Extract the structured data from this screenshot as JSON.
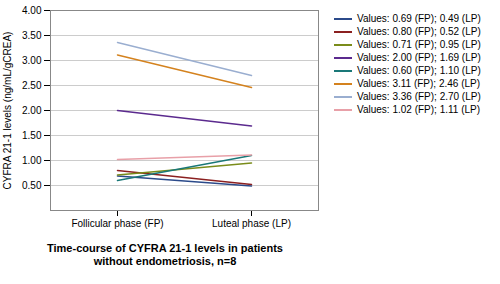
{
  "chart_data": {
    "type": "line",
    "title": "Time-course of CYFRA 21-1 levels in patients\nwithout endometriosis, n=8",
    "categories": [
      "Follicular phase (FP)",
      "Luteal phase (LP)"
    ],
    "ylabel": "CYFRA 21-1 levels (ng/mL/gCREA)",
    "series": [
      {
        "name": "Values: 0.69 (FP); 0.49 (LP)",
        "color": "#2b4a8a",
        "values": [
          0.69,
          0.49
        ]
      },
      {
        "name": "Values: 0.80 (FP); 0.52 (LP)",
        "color": "#8b2020",
        "values": [
          0.8,
          0.52
        ]
      },
      {
        "name": "Values: 0.71 (FP); 0.95 (LP)",
        "color": "#7a8c1a",
        "values": [
          0.71,
          0.95
        ]
      },
      {
        "name": "Values: 2.00 (FP); 1.69 (LP)",
        "color": "#5b2a8e",
        "values": [
          2.0,
          1.69
        ]
      },
      {
        "name": "Values: 0.60 (FP); 1.10 (LP)",
        "color": "#1a7878",
        "values": [
          0.6,
          1.1
        ]
      },
      {
        "name": "Values: 3.11 (FP); 2.46 (LP)",
        "color": "#d4821e",
        "values": [
          3.11,
          2.46
        ]
      },
      {
        "name": "Values: 3.36 (FP); 2.70 (LP)",
        "color": "#9aaed0",
        "values": [
          3.36,
          2.7
        ]
      },
      {
        "name": "Values: 1.02 (FP); 1.11 (LP)",
        "color": "#e8a0a8",
        "values": [
          1.02,
          1.11
        ]
      }
    ],
    "ylim": [
      0.0,
      4.0
    ],
    "yticks": [
      {
        "value": 0.5,
        "label": "0.50"
      },
      {
        "value": 1.0,
        "label": "1.00"
      },
      {
        "value": 1.5,
        "label": "1.50"
      },
      {
        "value": 2.0,
        "label": "2.00"
      },
      {
        "value": 2.5,
        "label": "2.50"
      },
      {
        "value": 3.0,
        "label": "3.00"
      },
      {
        "value": 3.5,
        "label": "3.50"
      },
      {
        "value": 4.0,
        "label": "4.00"
      }
    ],
    "grid": true,
    "legend": "upper right"
  }
}
